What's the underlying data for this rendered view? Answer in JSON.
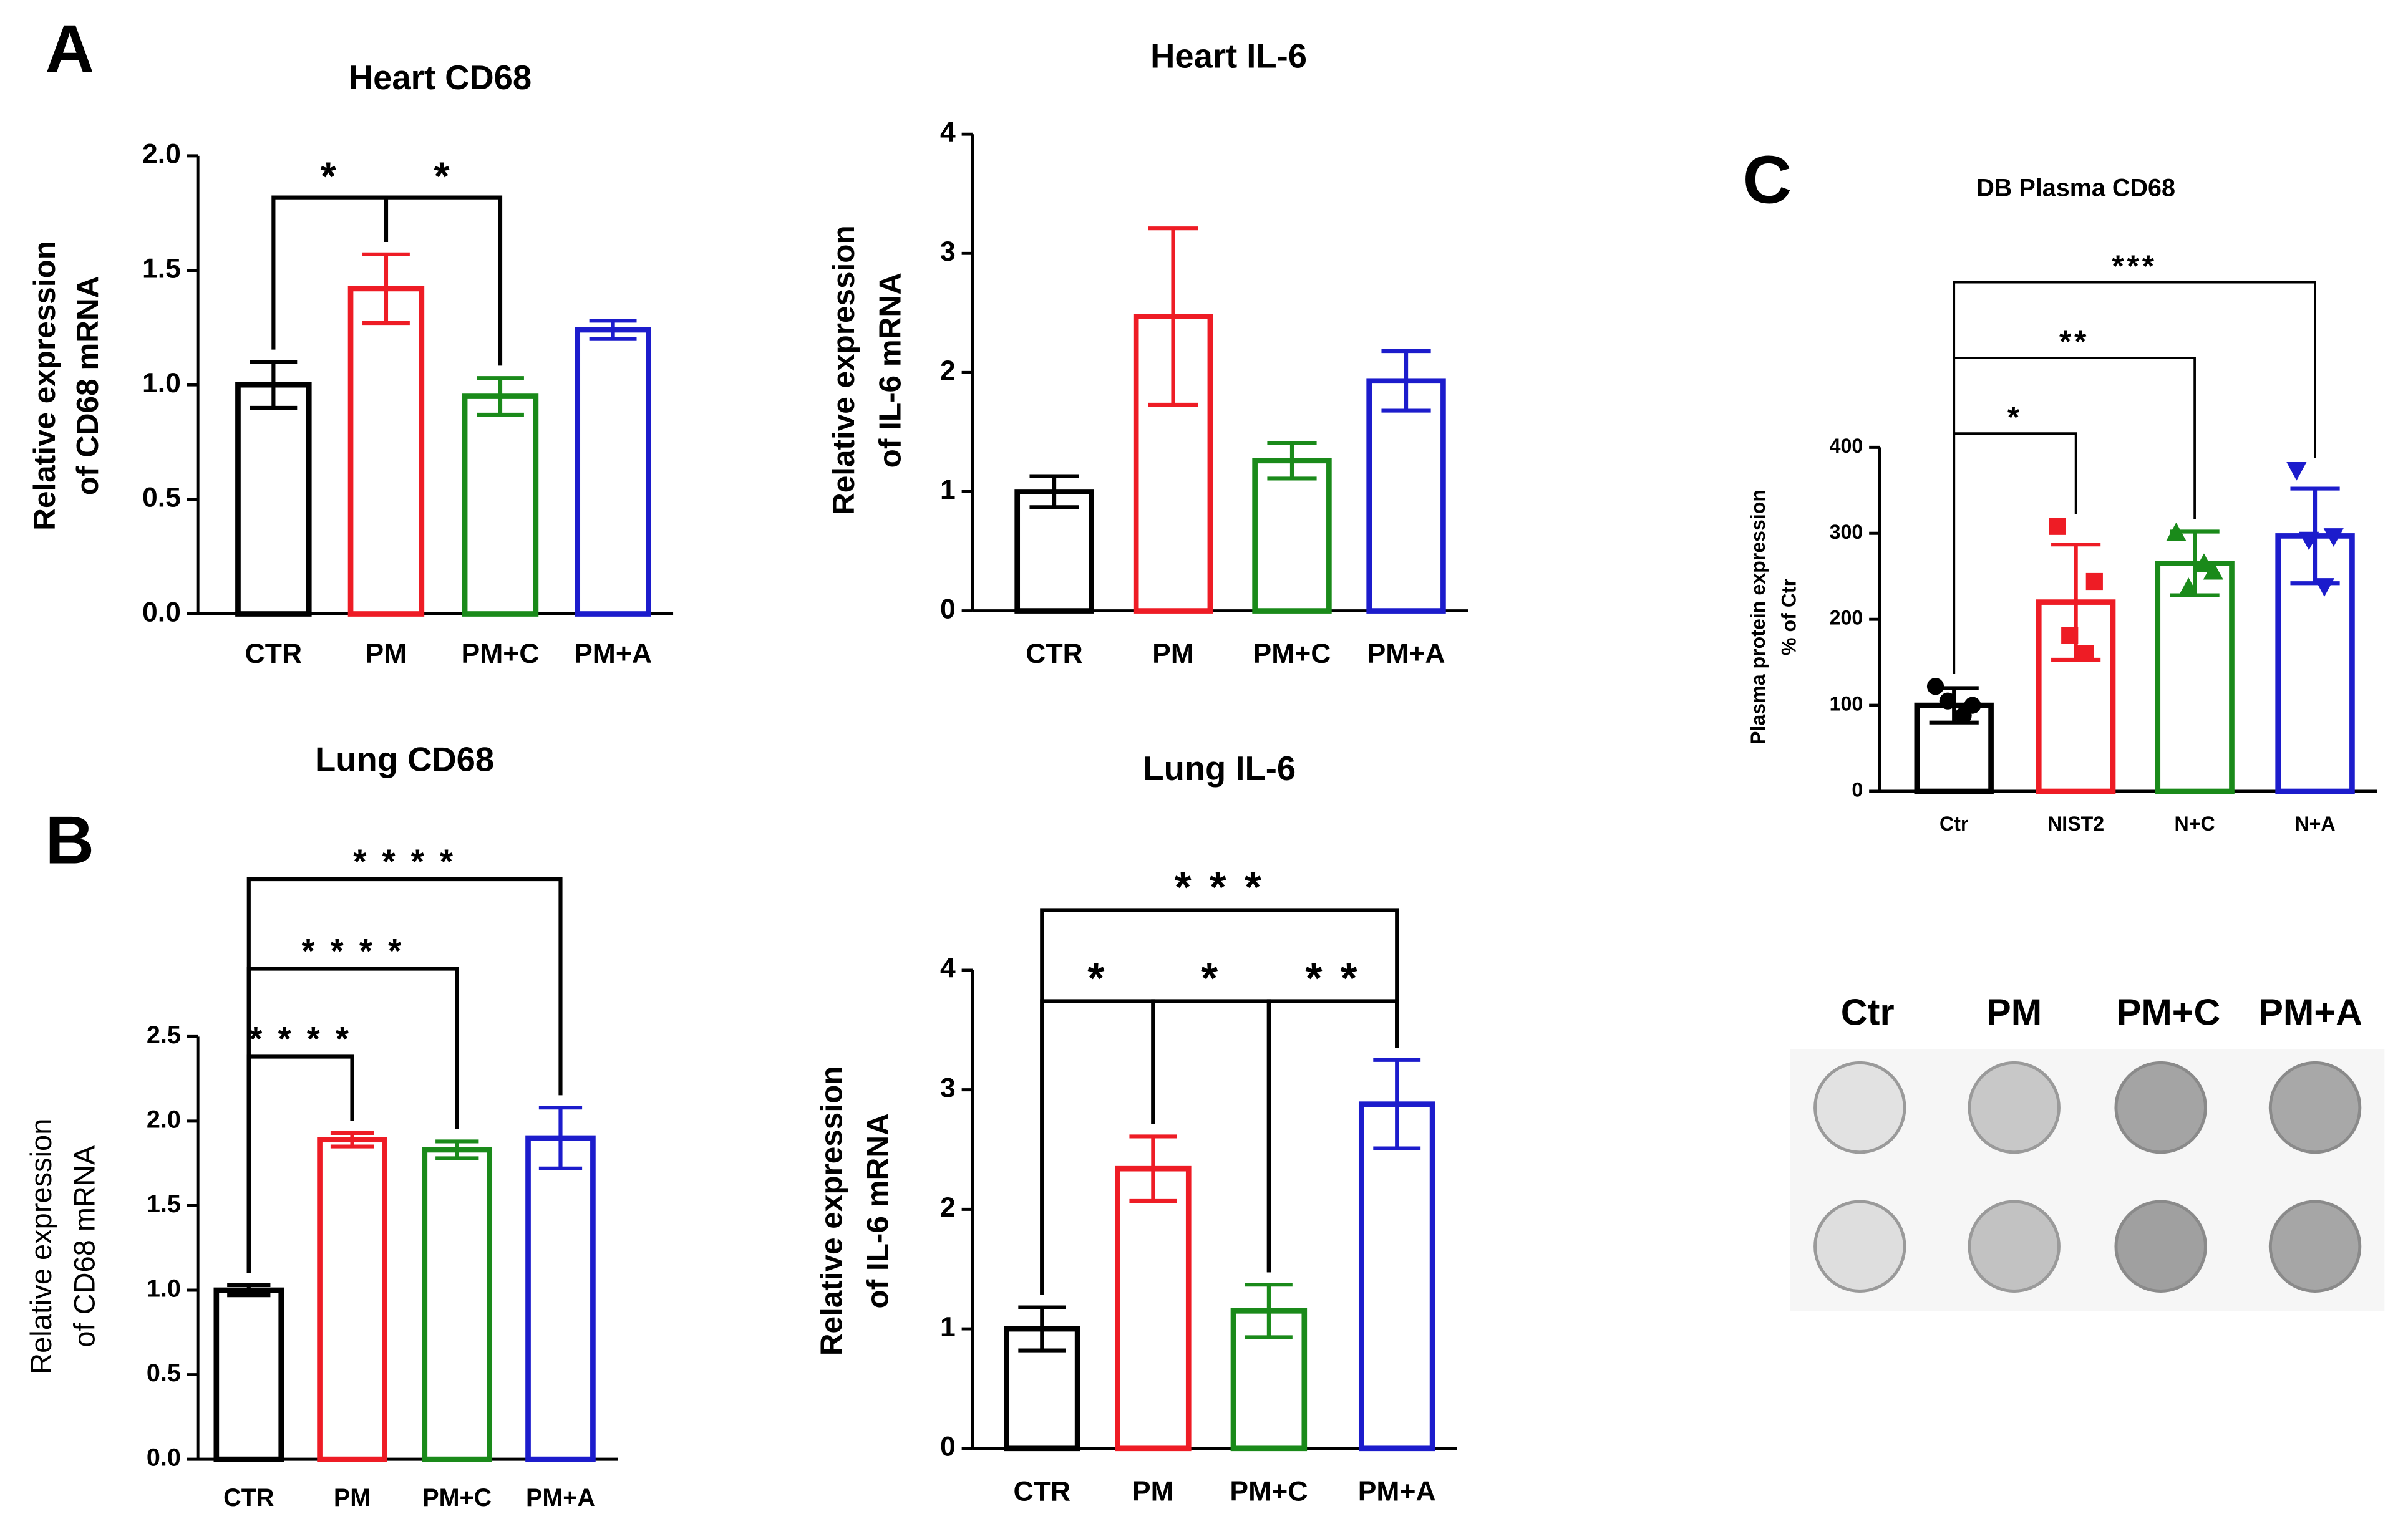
{
  "panel_labels": [
    "A",
    "B",
    "C"
  ],
  "chart_data": [
    {
      "type": "bar",
      "title": "Heart CD68",
      "y_label": [
        "Relative expression",
        "of CD68 mRNA"
      ],
      "categories": [
        "CTR",
        "PM",
        "PM+C",
        "PM+A"
      ],
      "values": [
        1.0,
        1.42,
        0.95,
        1.24
      ],
      "errors": [
        0.1,
        0.15,
        0.08,
        0.04
      ],
      "colors": [
        "#000000",
        "#ee1c25",
        "#1a8a1a",
        "#1c1ccc"
      ],
      "ylim": [
        0,
        2.0
      ],
      "yticks": [
        {
          "value": 0,
          "label": "0.0"
        },
        {
          "value": 0.5,
          "label": "0.5"
        },
        {
          "value": 1,
          "label": "1.0"
        },
        {
          "value": 1.5,
          "label": "1.5"
        },
        {
          "value": 2,
          "label": "2.0"
        }
      ],
      "comparisons": [
        {
          "from": "CTR",
          "to": "PM",
          "label": "*"
        },
        {
          "from": "PM",
          "to": "PM+C",
          "label": "*"
        }
      ]
    },
    {
      "type": "bar",
      "title": "Heart IL-6",
      "y_label": [
        "Relative expression",
        "of IL-6 mRNA"
      ],
      "categories": [
        "CTR",
        "PM",
        "PM+C",
        "PM+A"
      ],
      "values": [
        1.0,
        2.47,
        1.26,
        1.93
      ],
      "errors": [
        0.13,
        0.74,
        0.15,
        0.25
      ],
      "colors": [
        "#000000",
        "#ee1c25",
        "#1a8a1a",
        "#1c1ccc"
      ],
      "ylim": [
        0,
        4
      ],
      "yticks": [
        0,
        1,
        2,
        3,
        4
      ],
      "comparisons": []
    },
    {
      "type": "bar",
      "title": "Lung CD68",
      "y_label": [
        "Relative expression",
        "of CD68 mRNA"
      ],
      "categories": [
        "CTR",
        "PM",
        "PM+C",
        "PM+A"
      ],
      "values": [
        1.0,
        1.89,
        1.83,
        1.9
      ],
      "errors": [
        0.03,
        0.04,
        0.05,
        0.18
      ],
      "colors": [
        "#000000",
        "#ee1c25",
        "#1a8a1a",
        "#1c1ccc"
      ],
      "ylim": [
        0,
        2.5
      ],
      "yticks": [
        {
          "value": 0,
          "label": "0.0"
        },
        {
          "value": 0.5,
          "label": "0.5"
        },
        {
          "value": 1,
          "label": "1.0"
        },
        {
          "value": 1.5,
          "label": "1.5"
        },
        {
          "value": 2,
          "label": "2.0"
        },
        {
          "value": 2.5,
          "label": "2.5"
        }
      ],
      "comparisons": [
        {
          "from": "CTR",
          "to": "PM",
          "label": "* * * *"
        },
        {
          "from": "CTR",
          "to": "PM+C",
          "label": "* * * *"
        },
        {
          "from": "CTR",
          "to": "PM+A",
          "label": "* * * *"
        }
      ]
    },
    {
      "type": "bar",
      "title": "Lung IL-6",
      "y_label": [
        "Relative expression",
        "of IL-6 mRNA"
      ],
      "categories": [
        "CTR",
        "PM",
        "PM+C",
        "PM+A"
      ],
      "values": [
        1.0,
        2.34,
        1.15,
        2.88
      ],
      "errors": [
        0.18,
        0.27,
        0.22,
        0.37
      ],
      "colors": [
        "#000000",
        "#ee1c25",
        "#1a8a1a",
        "#1c1ccc"
      ],
      "ylim": [
        0,
        4
      ],
      "yticks": [
        0,
        1,
        2,
        3,
        4
      ],
      "comparisons": [
        {
          "from": "CTR",
          "to": "PM",
          "label": "*"
        },
        {
          "from": "PM",
          "to": "PM+C",
          "label": "*"
        },
        {
          "from": "PM+C",
          "to": "PM+A",
          "label": "* *"
        },
        {
          "from": "CTR",
          "to": "PM+A",
          "label": "* * *"
        }
      ]
    },
    {
      "type": "bar",
      "title": "DB Plasma CD68",
      "y_label": [
        "Plasma protein expression",
        "% of Ctr"
      ],
      "categories": [
        "Ctr",
        "NIST2",
        "N+C",
        "N+A"
      ],
      "values": [
        100,
        220,
        265,
        297
      ],
      "errors": [
        20,
        67,
        37,
        55
      ],
      "colors": [
        "#000000",
        "#ee1c25",
        "#1a8a1a",
        "#1c1ccc"
      ],
      "markers": [
        "circle",
        "square",
        "triangle",
        "triangle-down"
      ],
      "points": [
        [
          122,
          100,
          105,
          88
        ],
        [
          308,
          244,
          181,
          160
        ],
        [
          301,
          256,
          237,
          265
        ],
        [
          373,
          296,
          292,
          238
        ]
      ],
      "ylim": [
        0,
        400
      ],
      "yticks": [
        0,
        100,
        200,
        300,
        400
      ],
      "comparisons": [
        {
          "from": "Ctr",
          "to": "NIST2",
          "label": "*"
        },
        {
          "from": "Ctr",
          "to": "N+C",
          "label": "**"
        },
        {
          "from": "Ctr",
          "to": "N+A",
          "label": "***"
        }
      ]
    }
  ],
  "blot": {
    "labels": [
      "Ctr",
      "PM",
      "PM+C",
      "PM+A"
    ]
  }
}
